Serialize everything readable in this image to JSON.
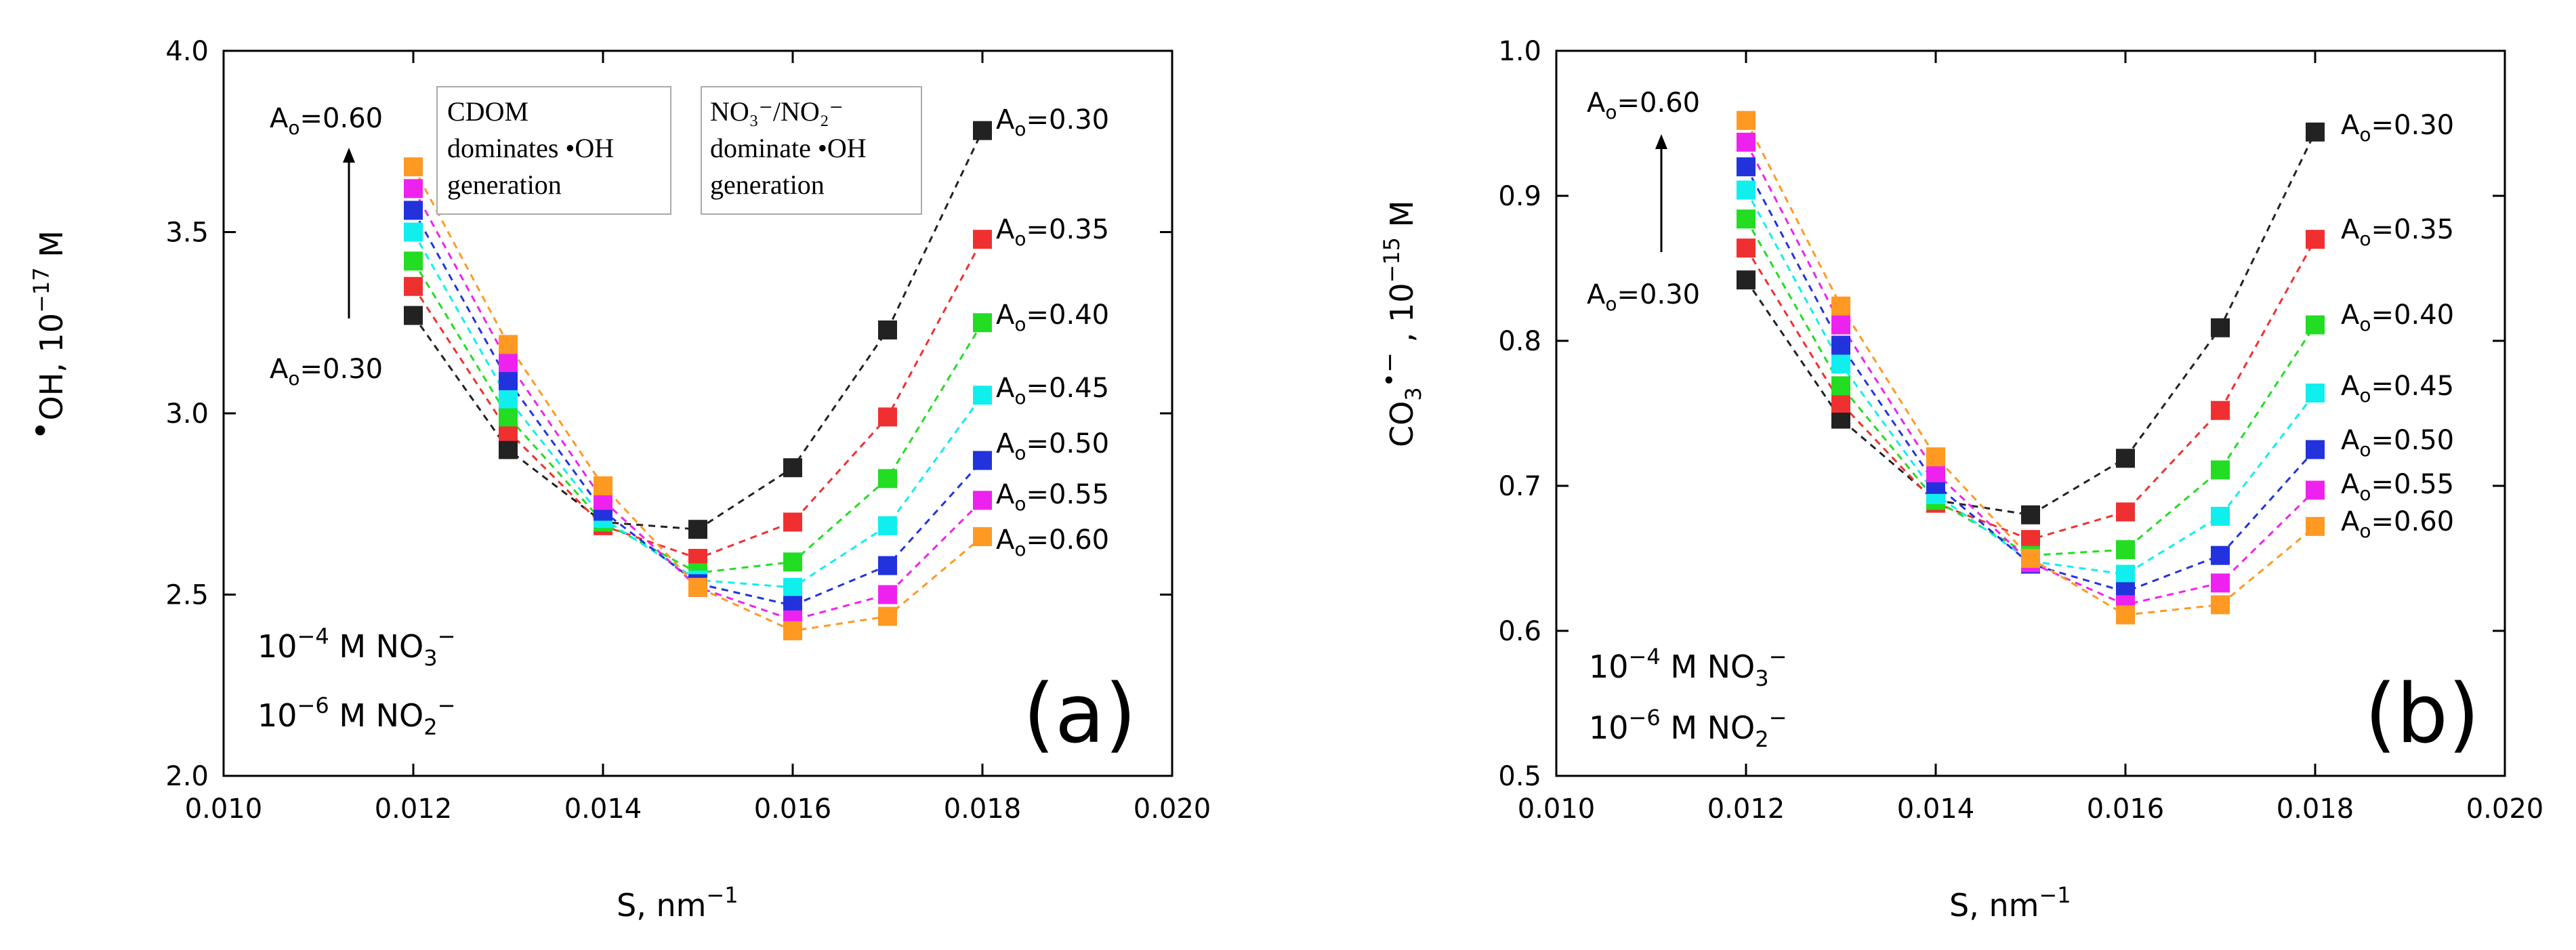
{
  "chart_data": [
    {
      "type": "scatter",
      "panel_label": "(a)",
      "title": "",
      "xlabel": "S, nm",
      "xlabel_sup": "−1",
      "ylabel_main": "OH, 10",
      "ylabel_sup": "−17",
      "ylabel_tail": "  M",
      "xlim": [
        0.01,
        0.02
      ],
      "ylim": [
        2.0,
        4.0
      ],
      "xticks": [
        0.01,
        0.012,
        0.014,
        0.016,
        0.018,
        0.02
      ],
      "xtick_labels": [
        "0.010",
        "0.012",
        "0.014",
        "0.016",
        "0.018",
        "0.020"
      ],
      "yticks": [
        2.0,
        2.5,
        3.0,
        3.5,
        4.0
      ],
      "ytick_labels": [
        "2.0",
        "2.5",
        "3.0",
        "3.5",
        "4.0"
      ],
      "x": [
        0.012,
        0.013,
        0.014,
        0.015,
        0.016,
        0.017,
        0.018
      ],
      "series": [
        {
          "name": "Ao=0.30",
          "label_prefix": "A",
          "label_sub": "o",
          "label_value": "=0.30",
          "color": "#222222",
          "values": [
            3.27,
            2.9,
            2.7,
            2.68,
            2.85,
            3.23,
            3.78
          ]
        },
        {
          "name": "Ao=0.35",
          "label_prefix": "A",
          "label_sub": "o",
          "label_value": "=0.35",
          "color": "#f03030",
          "values": [
            3.35,
            2.95,
            2.69,
            2.6,
            2.7,
            2.99,
            3.48
          ]
        },
        {
          "name": "Ao=0.40",
          "label_prefix": "A",
          "label_sub": "o",
          "label_value": "=0.40",
          "color": "#22dd22",
          "values": [
            3.42,
            2.99,
            2.7,
            2.56,
            2.59,
            2.82,
            3.25
          ]
        },
        {
          "name": "Ao=0.45",
          "label_prefix": "A",
          "label_sub": "o",
          "label_value": "=0.45",
          "color": "#11eeee",
          "values": [
            3.5,
            3.04,
            2.71,
            2.54,
            2.52,
            2.69,
            3.05
          ]
        },
        {
          "name": "Ao=0.50",
          "label_prefix": "A",
          "label_sub": "o",
          "label_value": "=0.50",
          "color": "#2233dd",
          "values": [
            3.56,
            3.09,
            2.73,
            2.53,
            2.47,
            2.58,
            2.87
          ]
        },
        {
          "name": "Ao=0.55",
          "label_prefix": "A",
          "label_sub": "o",
          "label_value": "=0.55",
          "color": "#ee22ee",
          "values": [
            3.62,
            3.14,
            2.76,
            2.52,
            2.43,
            2.5,
            2.76
          ]
        },
        {
          "name": "Ao=0.60",
          "label_prefix": "A",
          "label_sub": "o",
          "label_value": "=0.60",
          "color": "#ff9922",
          "values": [
            3.68,
            3.19,
            2.8,
            2.52,
            2.4,
            2.44,
            2.66
          ]
        }
      ],
      "annotations": {
        "arrow_top": {
          "prefix": "A",
          "sub": "o",
          "value": "=0.60"
        },
        "arrow_bottom": {
          "prefix": "A",
          "sub": "o",
          "value": "=0.30"
        },
        "box1_lines": [
          "CDOM",
          "dominates •OH",
          "generation"
        ],
        "box2_lines": [
          "NO₃⁻/NO₂⁻",
          "dominate •OH",
          "generation"
        ],
        "conc1": {
          "exp": "10",
          "sup": "−4",
          "unit": "  M  NO",
          "sub": "3",
          "sup2": "−"
        },
        "conc2": {
          "exp": "10",
          "sup": "−6",
          "unit": "  M  NO",
          "sub": "2",
          "sup2": "−"
        }
      }
    },
    {
      "type": "scatter",
      "panel_label": "(b)",
      "title": "",
      "xlabel": "S, nm",
      "xlabel_sup": "−1",
      "ylabel_main": "CO",
      "ylabel_sub": "3",
      "ylabel_sup": "•−",
      "ylabel_tail": " ,  10",
      "ylabel_sup2": "−15",
      "ylabel_tail2": "  M",
      "xlim": [
        0.01,
        0.02
      ],
      "ylim": [
        0.5,
        1.0
      ],
      "xticks": [
        0.01,
        0.012,
        0.014,
        0.016,
        0.018,
        0.02
      ],
      "xtick_labels": [
        "0.010",
        "0.012",
        "0.014",
        "0.016",
        "0.018",
        "0.020"
      ],
      "yticks": [
        0.5,
        0.6,
        0.7,
        0.8,
        0.9,
        1.0
      ],
      "ytick_labels": [
        "0.5",
        "0.6",
        "0.7",
        "0.8",
        "0.9",
        "1.0"
      ],
      "x": [
        0.012,
        0.013,
        0.014,
        0.015,
        0.016,
        0.017,
        0.018
      ],
      "series": [
        {
          "name": "Ao=0.30",
          "label_prefix": "A",
          "label_sub": "o",
          "label_value": "=0.30",
          "color": "#222222",
          "values": [
            0.842,
            0.746,
            0.69,
            0.68,
            0.719,
            0.809,
            0.944
          ]
        },
        {
          "name": "Ao=0.35",
          "label_prefix": "A",
          "label_sub": "o",
          "label_value": "=0.35",
          "color": "#f03030",
          "values": [
            0.864,
            0.757,
            0.688,
            0.663,
            0.682,
            0.752,
            0.87
          ]
        },
        {
          "name": "Ao=0.40",
          "label_prefix": "A",
          "label_sub": "o",
          "label_value": "=0.40",
          "color": "#22dd22",
          "values": [
            0.884,
            0.769,
            0.69,
            0.652,
            0.656,
            0.711,
            0.811
          ]
        },
        {
          "name": "Ao=0.45",
          "label_prefix": "A",
          "label_sub": "o",
          "label_value": "=0.45",
          "color": "#11eeee",
          "values": [
            0.904,
            0.784,
            0.694,
            0.648,
            0.639,
            0.679,
            0.764
          ]
        },
        {
          "name": "Ao=0.50",
          "label_prefix": "A",
          "label_sub": "o",
          "label_value": "=0.50",
          "color": "#2233dd",
          "values": [
            0.92,
            0.797,
            0.701,
            0.646,
            0.627,
            0.652,
            0.725
          ]
        },
        {
          "name": "Ao=0.55",
          "label_prefix": "A",
          "label_sub": "o",
          "label_value": "=0.55",
          "color": "#ee22ee",
          "values": [
            0.937,
            0.811,
            0.709,
            0.647,
            0.618,
            0.633,
            0.697
          ]
        },
        {
          "name": "Ao=0.60",
          "label_prefix": "A",
          "label_sub": "o",
          "label_value": "=0.60",
          "color": "#ff9922",
          "values": [
            0.952,
            0.824,
            0.72,
            0.65,
            0.611,
            0.618,
            0.672
          ]
        }
      ],
      "annotations": {
        "arrow_top": {
          "prefix": "A",
          "sub": "o",
          "value": "=0.60"
        },
        "arrow_bottom": {
          "prefix": "A",
          "sub": "o",
          "value": "=0.30"
        },
        "conc1": {
          "exp": "10",
          "sup": "−4",
          "unit": "  M  NO",
          "sub": "3",
          "sup2": "−"
        },
        "conc2": {
          "exp": "10",
          "sup": "−6",
          "unit": "  M  NO",
          "sub": "2",
          "sup2": "−"
        }
      }
    }
  ]
}
